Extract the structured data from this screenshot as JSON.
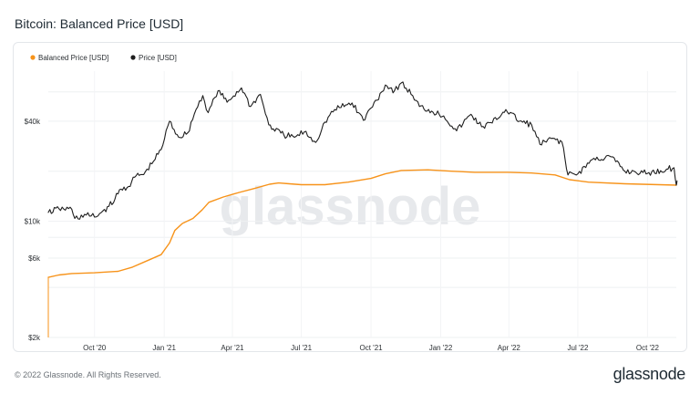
{
  "page": {
    "title": "Bitcoin: Balanced Price [USD]",
    "footer_copyright": "© 2022 Glassnode. All Rights Reserved.",
    "footer_logo": "glassnode",
    "watermark": "glassnode"
  },
  "chart_data": {
    "type": "line",
    "title": "Bitcoin: Balanced Price [USD]",
    "xlabel": "",
    "ylabel": "",
    "yscale": "log",
    "ylim": [
      2000,
      80000
    ],
    "xlim": [
      "2020-08-01",
      "2022-11-08"
    ],
    "legend_position": "top-left",
    "grid": true,
    "x_ticks": [
      {
        "date": "2020-10-01",
        "label": "Oct '20"
      },
      {
        "date": "2021-01-01",
        "label": "Jan '21"
      },
      {
        "date": "2021-04-01",
        "label": "Apr '21"
      },
      {
        "date": "2021-07-01",
        "label": "Jul '21"
      },
      {
        "date": "2021-10-01",
        "label": "Oct '21"
      },
      {
        "date": "2022-01-01",
        "label": "Jan '22"
      },
      {
        "date": "2022-04-01",
        "label": "Apr '22"
      },
      {
        "date": "2022-07-01",
        "label": "Jul '22"
      },
      {
        "date": "2022-10-01",
        "label": "Oct '22"
      }
    ],
    "y_ticks": [
      {
        "value": 2000,
        "label": "$2k"
      },
      {
        "value": 6000,
        "label": "$6k"
      },
      {
        "value": 10000,
        "label": "$10k"
      },
      {
        "value": 40000,
        "label": "$40k"
      }
    ],
    "series": [
      {
        "name": "Balanced Price [USD]",
        "color": "#f7931a",
        "points": [
          [
            "2020-08-01",
            4600
          ],
          [
            "2020-08-15",
            4750
          ],
          [
            "2020-09-01",
            4850
          ],
          [
            "2020-10-01",
            4900
          ],
          [
            "2020-11-01",
            5000
          ],
          [
            "2020-11-20",
            5300
          ],
          [
            "2020-12-10",
            5800
          ],
          [
            "2020-12-28",
            6300
          ],
          [
            "2021-01-08",
            7400
          ],
          [
            "2021-01-15",
            8800
          ],
          [
            "2021-01-25",
            9700
          ],
          [
            "2021-02-08",
            10400
          ],
          [
            "2021-02-20",
            11700
          ],
          [
            "2021-03-01",
            13000
          ],
          [
            "2021-03-20",
            14000
          ],
          [
            "2021-04-10",
            14900
          ],
          [
            "2021-05-01",
            15800
          ],
          [
            "2021-05-20",
            16700
          ],
          [
            "2021-06-01",
            17000
          ],
          [
            "2021-06-15",
            16800
          ],
          [
            "2021-07-01",
            16600
          ],
          [
            "2021-08-01",
            16600
          ],
          [
            "2021-09-01",
            17200
          ],
          [
            "2021-10-01",
            18100
          ],
          [
            "2021-10-20",
            19300
          ],
          [
            "2021-11-10",
            20200
          ],
          [
            "2021-12-15",
            20400
          ],
          [
            "2022-01-15",
            20000
          ],
          [
            "2022-02-15",
            19700
          ],
          [
            "2022-04-01",
            19700
          ],
          [
            "2022-05-01",
            19500
          ],
          [
            "2022-06-01",
            19000
          ],
          [
            "2022-06-20",
            17800
          ],
          [
            "2022-07-15",
            17200
          ],
          [
            "2022-09-01",
            16800
          ],
          [
            "2022-11-08",
            16500
          ]
        ]
      },
      {
        "name": "Price [USD]",
        "color": "#1e1e1e",
        "points": [
          [
            "2020-08-01",
            11300
          ],
          [
            "2020-08-15",
            11900
          ],
          [
            "2020-09-01",
            11800
          ],
          [
            "2020-09-05",
            10400
          ],
          [
            "2020-09-20",
            10900
          ],
          [
            "2020-10-01",
            10600
          ],
          [
            "2020-10-10",
            11300
          ],
          [
            "2020-10-20",
            12300
          ],
          [
            "2020-10-28",
            13600
          ],
          [
            "2020-11-05",
            15600
          ],
          [
            "2020-11-15",
            16200
          ],
          [
            "2020-11-25",
            18800
          ],
          [
            "2020-12-05",
            19100
          ],
          [
            "2020-12-18",
            23000
          ],
          [
            "2020-12-28",
            27000
          ],
          [
            "2021-01-08",
            40000
          ],
          [
            "2021-01-20",
            32000
          ],
          [
            "2021-02-01",
            34000
          ],
          [
            "2021-02-12",
            47000
          ],
          [
            "2021-02-21",
            57000
          ],
          [
            "2021-02-28",
            45000
          ],
          [
            "2021-03-13",
            61000
          ],
          [
            "2021-03-25",
            52000
          ],
          [
            "2021-04-13",
            63500
          ],
          [
            "2021-04-25",
            49000
          ],
          [
            "2021-05-08",
            58000
          ],
          [
            "2021-05-19",
            38000
          ],
          [
            "2021-05-25",
            36000
          ],
          [
            "2021-06-08",
            33000
          ],
          [
            "2021-06-22",
            32000
          ],
          [
            "2021-07-05",
            34500
          ],
          [
            "2021-07-20",
            29800
          ],
          [
            "2021-08-01",
            39500
          ],
          [
            "2021-08-14",
            47000
          ],
          [
            "2021-09-06",
            51500
          ],
          [
            "2021-09-21",
            40500
          ],
          [
            "2021-10-01",
            48000
          ],
          [
            "2021-10-15",
            60000
          ],
          [
            "2021-10-20",
            66000
          ],
          [
            "2021-11-01",
            61000
          ],
          [
            "2021-11-10",
            68000
          ],
          [
            "2021-11-25",
            57000
          ],
          [
            "2021-12-04",
            49000
          ],
          [
            "2021-12-20",
            46000
          ],
          [
            "2022-01-05",
            43000
          ],
          [
            "2022-01-22",
            35000
          ],
          [
            "2022-02-10",
            44000
          ],
          [
            "2022-02-24",
            37000
          ],
          [
            "2022-03-10",
            39000
          ],
          [
            "2022-03-28",
            47000
          ],
          [
            "2022-04-15",
            40000
          ],
          [
            "2022-05-01",
            38000
          ],
          [
            "2022-05-12",
            29000
          ],
          [
            "2022-05-31",
            31500
          ],
          [
            "2022-06-10",
            30000
          ],
          [
            "2022-06-18",
            19000
          ],
          [
            "2022-07-01",
            19300
          ],
          [
            "2022-07-20",
            23500
          ],
          [
            "2022-08-14",
            24400
          ],
          [
            "2022-09-01",
            20000
          ],
          [
            "2022-09-15",
            19800
          ],
          [
            "2022-10-01",
            19400
          ],
          [
            "2022-10-28",
            20600
          ],
          [
            "2022-11-05",
            21000
          ],
          [
            "2022-11-08",
            16500
          ],
          [
            "2022-11-09",
            17500
          ]
        ]
      }
    ]
  }
}
